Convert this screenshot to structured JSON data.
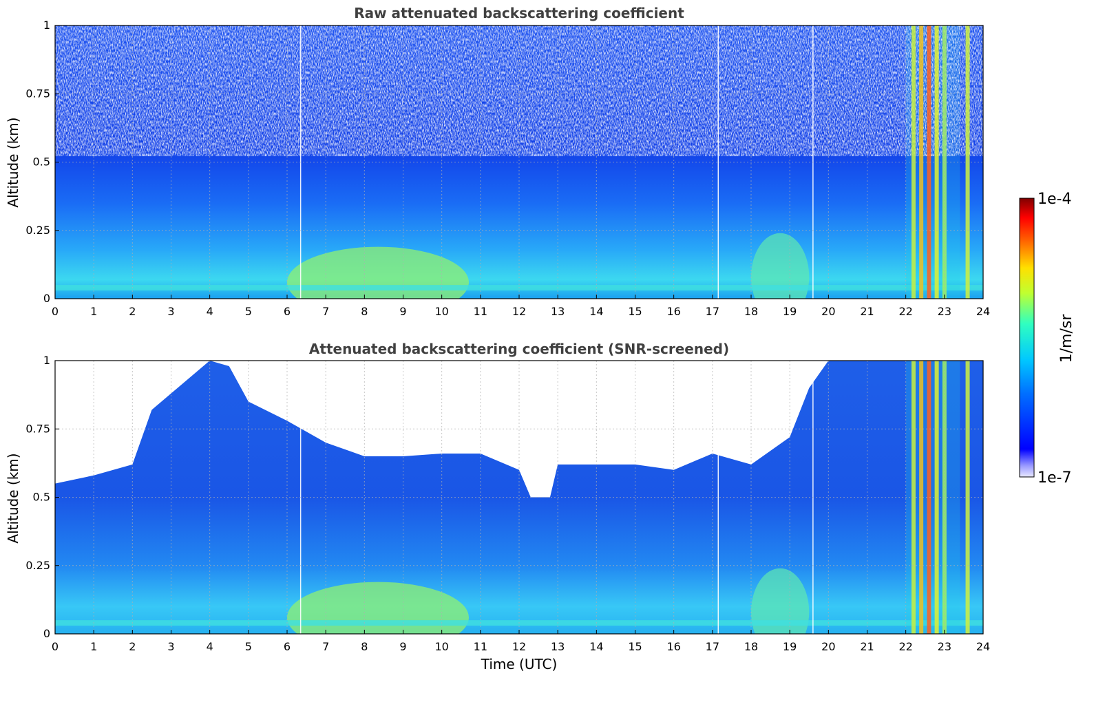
{
  "chart_data": [
    {
      "type": "heatmap",
      "title": "Raw attenuated backscattering coefficient",
      "xlabel": "",
      "ylabel": "Altitude (km)",
      "xlim": [
        0,
        24
      ],
      "ylim": [
        0,
        1
      ],
      "x_ticks": [
        "0",
        "1",
        "2",
        "3",
        "4",
        "5",
        "6",
        "7",
        "8",
        "9",
        "10",
        "11",
        "12",
        "13",
        "14",
        "15",
        "16",
        "17",
        "18",
        "19",
        "20",
        "21",
        "22",
        "23",
        "24"
      ],
      "y_ticks": [
        "0",
        "0.25",
        "0.5",
        "0.75",
        "1"
      ],
      "grid": true,
      "colorbar": {
        "label": "1/m/sr",
        "min_label": "1e-7",
        "max_label": "1e-4",
        "scale": "log",
        "colormap": "jet"
      },
      "features": {
        "surface_layer_top_km": 0.05,
        "aerosol_layer_peak_hours": [
          6.5,
          9.5
        ],
        "aerosol_layer_peak_top_km": 0.15,
        "evening_layer_hours": [
          18,
          19.5
        ],
        "bright_columns_hours": [
          22.2,
          22.4,
          22.6,
          22.8,
          23.0,
          23.6
        ],
        "gap_lines_hours": [
          6.35,
          17.15,
          19.6
        ]
      }
    },
    {
      "type": "heatmap",
      "title": "Attenuated backscattering coefficient (SNR-screened)",
      "xlabel": "Time (UTC)",
      "ylabel": "Altitude (km)",
      "xlim": [
        0,
        24
      ],
      "ylim": [
        0,
        1
      ],
      "x_ticks": [
        "0",
        "1",
        "2",
        "3",
        "4",
        "5",
        "6",
        "7",
        "8",
        "9",
        "10",
        "11",
        "12",
        "13",
        "14",
        "15",
        "16",
        "17",
        "18",
        "19",
        "20",
        "21",
        "22",
        "23",
        "24"
      ],
      "y_ticks": [
        "0",
        "0.25",
        "0.5",
        "0.75",
        "1"
      ],
      "grid": true,
      "screened_top_km": {
        "hours": [
          0,
          1,
          2,
          2.5,
          3,
          4,
          4.5,
          5,
          6,
          7,
          8,
          9,
          10,
          11,
          12,
          12.3,
          12.8,
          13,
          14,
          15,
          16,
          17,
          18,
          19,
          19.5,
          20,
          21,
          22,
          23,
          24
        ],
        "altitude": [
          0.55,
          0.58,
          0.62,
          0.82,
          0.88,
          1.0,
          0.98,
          0.85,
          0.78,
          0.7,
          0.65,
          0.65,
          0.66,
          0.66,
          0.6,
          0.5,
          0.5,
          0.62,
          0.62,
          0.62,
          0.6,
          0.66,
          0.62,
          0.72,
          0.9,
          1.0,
          1.0,
          1.0,
          1.0,
          1.0
        ]
      }
    }
  ]
}
